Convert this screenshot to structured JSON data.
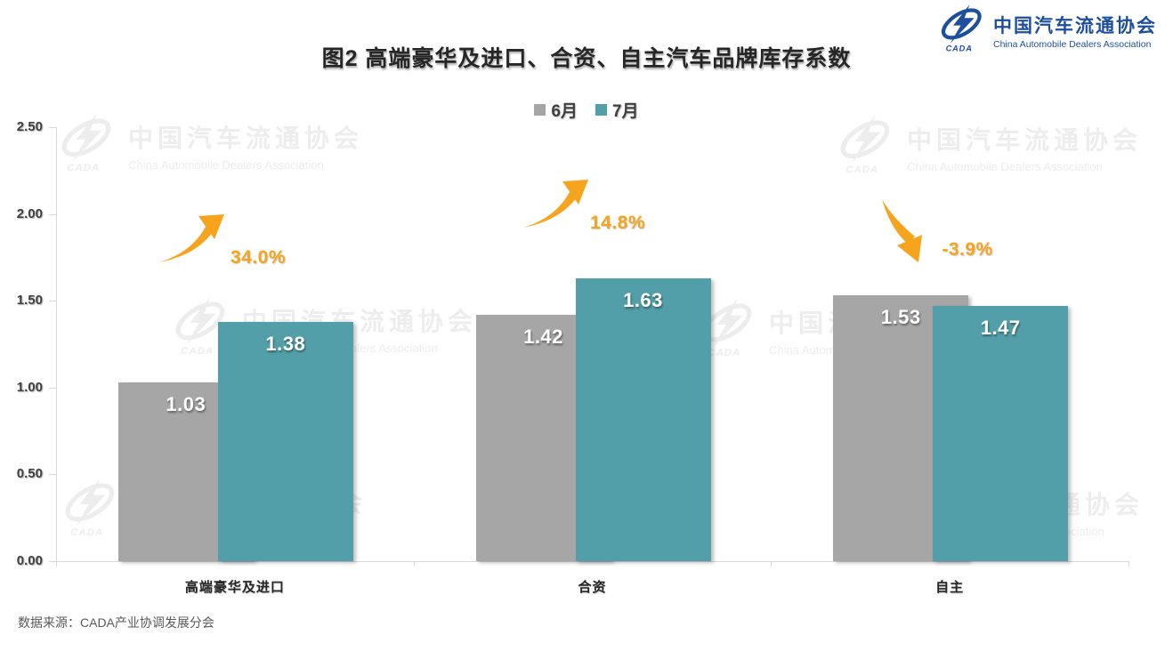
{
  "logo": {
    "icon": "cada-swoosh-logo",
    "cn": "中国汽车流通协会",
    "en": "China Automobile Dealers Association",
    "color": "#1d4f9e"
  },
  "chart_data": {
    "type": "bar",
    "title": "图2  高端豪华及进口、合资、自主汽车品牌库存系数",
    "categories": [
      "高端豪华及进口",
      "合资",
      "自主"
    ],
    "series": [
      {
        "name": "6月",
        "color": "#a6a6a6",
        "values": [
          1.03,
          1.42,
          1.53
        ]
      },
      {
        "name": "7月",
        "color": "#539fa9",
        "values": [
          1.38,
          1.63,
          1.47
        ]
      }
    ],
    "change_labels": [
      "34.0%",
      "14.8%",
      "-3.9%"
    ],
    "change_directions": [
      "up",
      "up",
      "down"
    ],
    "change_color": "#f6a41d",
    "ylim": [
      0,
      2.5
    ],
    "yticks": [
      "0.00",
      "0.50",
      "1.00",
      "1.50",
      "2.00",
      "2.50"
    ],
    "ylabel": "",
    "xlabel": "",
    "legend_position": "top-center",
    "grid": false
  },
  "watermark": {
    "cn": "中国汽车流通协会",
    "en": "China Automobile Dealers Association"
  },
  "footer": {
    "source": "数据来源：CADA产业协调发展分会"
  }
}
